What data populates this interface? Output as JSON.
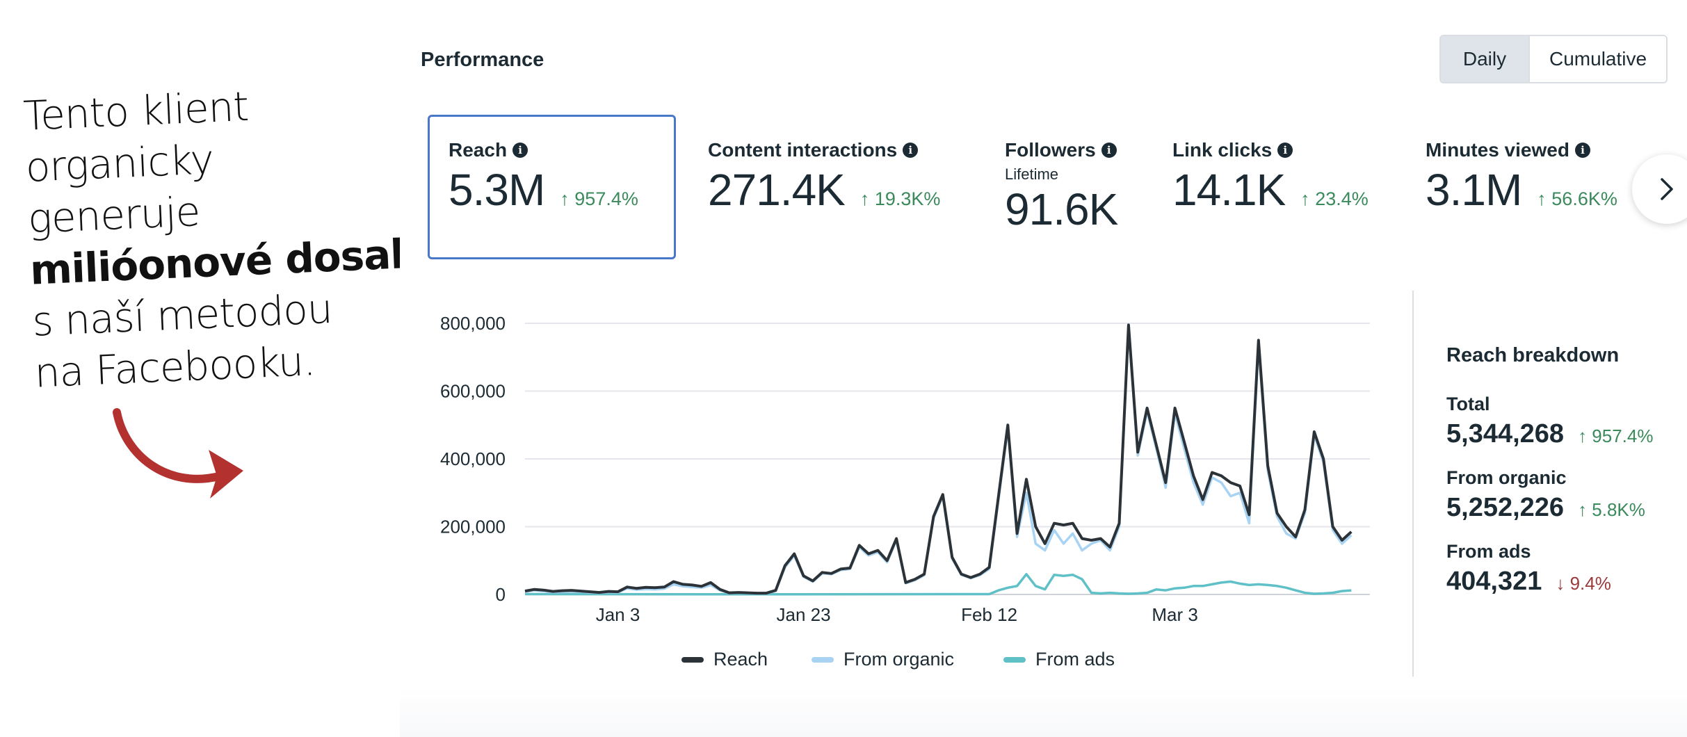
{
  "promo": {
    "lines": [
      "Tento klient",
      "organicky",
      "generuje",
      "milióonové dosahy",
      "s naší metodou",
      "na Facebooku."
    ]
  },
  "performance": {
    "title": "Performance",
    "toggle": {
      "daily": "Daily",
      "cumulative": "Cumulative",
      "active": "Daily"
    },
    "metrics": [
      {
        "label": "Reach",
        "value": "5.3M",
        "change": "↑ 957.4%",
        "selected": true
      },
      {
        "label": "Content interactions",
        "value": "271.4K",
        "change": "↑ 19.3K%"
      },
      {
        "label": "Followers",
        "sublabel": "Lifetime",
        "value": "91.6K"
      },
      {
        "label": "Link clicks",
        "value": "14.1K",
        "change": "↑ 23.4%"
      },
      {
        "label": "Minutes viewed",
        "value": "3.1M",
        "change": "↑ 56.6K%"
      }
    ],
    "info_icon": "info-icon",
    "next_icon": "chevron-right-icon"
  },
  "chart_data": {
    "type": "line",
    "x_ticks": [
      "Jan 3",
      "Jan 23",
      "Feb 12",
      "Mar 3"
    ],
    "x_tick_days": [
      10,
      30,
      50,
      70
    ],
    "y_ticks": [
      "0",
      "200,000",
      "400,000",
      "600,000",
      "800,000"
    ],
    "ylim": [
      0,
      800000
    ],
    "xlim": [
      0,
      91
    ],
    "grid": true,
    "legend_position": "bottom",
    "series": [
      {
        "name": "Reach",
        "color": "#2b3238",
        "points": [
          [
            0,
            10000
          ],
          [
            1,
            15000
          ],
          [
            2,
            13000
          ],
          [
            3,
            9000
          ],
          [
            4,
            11000
          ],
          [
            5,
            12000
          ],
          [
            6,
            10000
          ],
          [
            7,
            8000
          ],
          [
            8,
            6000
          ],
          [
            9,
            9000
          ],
          [
            10,
            8000
          ],
          [
            11,
            22000
          ],
          [
            12,
            18000
          ],
          [
            13,
            21000
          ],
          [
            14,
            20000
          ],
          [
            15,
            22000
          ],
          [
            16,
            38000
          ],
          [
            17,
            30000
          ],
          [
            18,
            28000
          ],
          [
            19,
            24000
          ],
          [
            20,
            35000
          ],
          [
            21,
            15000
          ],
          [
            22,
            5000
          ],
          [
            23,
            6000
          ],
          [
            24,
            5000
          ],
          [
            25,
            4000
          ],
          [
            26,
            4000
          ],
          [
            27,
            12000
          ],
          [
            28,
            85000
          ],
          [
            29,
            120000
          ],
          [
            30,
            55000
          ],
          [
            31,
            40000
          ],
          [
            32,
            65000
          ],
          [
            33,
            62000
          ],
          [
            34,
            75000
          ],
          [
            35,
            78000
          ],
          [
            36,
            145000
          ],
          [
            37,
            120000
          ],
          [
            38,
            130000
          ],
          [
            39,
            100000
          ],
          [
            40,
            165000
          ],
          [
            41,
            35000
          ],
          [
            42,
            45000
          ],
          [
            43,
            60000
          ],
          [
            44,
            230000
          ],
          [
            45,
            295000
          ],
          [
            46,
            110000
          ],
          [
            47,
            60000
          ],
          [
            48,
            50000
          ],
          [
            49,
            60000
          ],
          [
            50,
            80000
          ],
          [
            51,
            290000
          ],
          [
            52,
            500000
          ],
          [
            53,
            180000
          ],
          [
            54,
            340000
          ],
          [
            55,
            200000
          ],
          [
            56,
            150000
          ],
          [
            57,
            210000
          ],
          [
            58,
            205000
          ],
          [
            59,
            210000
          ],
          [
            60,
            165000
          ],
          [
            61,
            160000
          ],
          [
            62,
            165000
          ],
          [
            63,
            140000
          ],
          [
            64,
            210000
          ],
          [
            65,
            795000
          ],
          [
            66,
            420000
          ],
          [
            67,
            550000
          ],
          [
            68,
            440000
          ],
          [
            69,
            330000
          ],
          [
            70,
            550000
          ],
          [
            71,
            450000
          ],
          [
            72,
            350000
          ],
          [
            73,
            280000
          ],
          [
            74,
            360000
          ],
          [
            75,
            350000
          ],
          [
            76,
            330000
          ],
          [
            77,
            320000
          ],
          [
            78,
            235000
          ],
          [
            79,
            750000
          ],
          [
            80,
            380000
          ],
          [
            81,
            240000
          ],
          [
            82,
            200000
          ],
          [
            83,
            170000
          ],
          [
            84,
            250000
          ],
          [
            85,
            480000
          ],
          [
            86,
            400000
          ],
          [
            87,
            200000
          ],
          [
            88,
            160000
          ],
          [
            89,
            185000
          ]
        ]
      },
      {
        "name": "From organic",
        "color": "#a8d3f2",
        "points": [
          [
            0,
            8000
          ],
          [
            1,
            12000
          ],
          [
            2,
            10000
          ],
          [
            3,
            7000
          ],
          [
            4,
            8000
          ],
          [
            5,
            9000
          ],
          [
            6,
            8000
          ],
          [
            7,
            6000
          ],
          [
            8,
            5000
          ],
          [
            9,
            7000
          ],
          [
            10,
            6000
          ],
          [
            11,
            18000
          ],
          [
            12,
            14000
          ],
          [
            13,
            16000
          ],
          [
            14,
            15000
          ],
          [
            15,
            17000
          ],
          [
            16,
            30000
          ],
          [
            17,
            24000
          ],
          [
            18,
            22000
          ],
          [
            19,
            20000
          ],
          [
            20,
            28000
          ],
          [
            21,
            12000
          ],
          [
            22,
            4000
          ],
          [
            23,
            5000
          ],
          [
            24,
            4000
          ],
          [
            25,
            3000
          ],
          [
            26,
            3000
          ],
          [
            27,
            10000
          ],
          [
            28,
            80000
          ],
          [
            29,
            115000
          ],
          [
            30,
            52000
          ],
          [
            31,
            38000
          ],
          [
            32,
            62000
          ],
          [
            33,
            60000
          ],
          [
            34,
            72000
          ],
          [
            35,
            75000
          ],
          [
            36,
            140000
          ],
          [
            37,
            115000
          ],
          [
            38,
            125000
          ],
          [
            39,
            95000
          ],
          [
            40,
            160000
          ],
          [
            41,
            33000
          ],
          [
            42,
            42000
          ],
          [
            43,
            57000
          ],
          [
            44,
            225000
          ],
          [
            45,
            290000
          ],
          [
            46,
            105000
          ],
          [
            47,
            58000
          ],
          [
            48,
            48000
          ],
          [
            49,
            57000
          ],
          [
            50,
            75000
          ],
          [
            51,
            280000
          ],
          [
            52,
            490000
          ],
          [
            53,
            170000
          ],
          [
            54,
            300000
          ],
          [
            55,
            150000
          ],
          [
            56,
            130000
          ],
          [
            57,
            190000
          ],
          [
            58,
            150000
          ],
          [
            59,
            180000
          ],
          [
            60,
            130000
          ],
          [
            61,
            150000
          ],
          [
            62,
            160000
          ],
          [
            63,
            130000
          ],
          [
            64,
            200000
          ],
          [
            65,
            785000
          ],
          [
            66,
            410000
          ],
          [
            67,
            540000
          ],
          [
            68,
            430000
          ],
          [
            69,
            315000
          ],
          [
            70,
            535000
          ],
          [
            71,
            430000
          ],
          [
            72,
            330000
          ],
          [
            73,
            265000
          ],
          [
            74,
            345000
          ],
          [
            75,
            330000
          ],
          [
            76,
            290000
          ],
          [
            77,
            300000
          ],
          [
            78,
            210000
          ],
          [
            79,
            735000
          ],
          [
            80,
            365000
          ],
          [
            81,
            230000
          ],
          [
            82,
            180000
          ],
          [
            83,
            165000
          ],
          [
            84,
            240000
          ],
          [
            85,
            470000
          ],
          [
            86,
            390000
          ],
          [
            87,
            190000
          ],
          [
            88,
            150000
          ],
          [
            89,
            175000
          ]
        ]
      },
      {
        "name": "From ads",
        "color": "#5fc0c7",
        "points": [
          [
            0,
            1000
          ],
          [
            20,
            500
          ],
          [
            50,
            1000
          ],
          [
            51,
            12000
          ],
          [
            52,
            20000
          ],
          [
            53,
            25000
          ],
          [
            54,
            60000
          ],
          [
            55,
            25000
          ],
          [
            56,
            15000
          ],
          [
            57,
            58000
          ],
          [
            58,
            55000
          ],
          [
            59,
            58000
          ],
          [
            60,
            45000
          ],
          [
            61,
            5000
          ],
          [
            62,
            3000
          ],
          [
            63,
            5000
          ],
          [
            64,
            3000
          ],
          [
            65,
            2000
          ],
          [
            66,
            3000
          ],
          [
            67,
            5000
          ],
          [
            68,
            15000
          ],
          [
            69,
            12000
          ],
          [
            70,
            18000
          ],
          [
            71,
            20000
          ],
          [
            72,
            25000
          ],
          [
            73,
            25000
          ],
          [
            74,
            30000
          ],
          [
            75,
            35000
          ],
          [
            76,
            38000
          ],
          [
            77,
            32000
          ],
          [
            78,
            28000
          ],
          [
            79,
            30000
          ],
          [
            80,
            28000
          ],
          [
            81,
            25000
          ],
          [
            82,
            20000
          ],
          [
            83,
            12000
          ],
          [
            84,
            5000
          ],
          [
            85,
            2000
          ],
          [
            86,
            3000
          ],
          [
            87,
            5000
          ],
          [
            88,
            10000
          ],
          [
            89,
            12000
          ]
        ]
      }
    ]
  },
  "breakdown": {
    "title": "Reach breakdown",
    "items": [
      {
        "label": "Total",
        "value": "5,344,268",
        "change": "↑ 957.4%",
        "dir": "up"
      },
      {
        "label": "From organic",
        "value": "5,252,226",
        "change": "↑ 5.8K%",
        "dir": "up"
      },
      {
        "label": "From ads",
        "value": "404,321",
        "change": "↓ 9.4%",
        "dir": "down"
      }
    ]
  }
}
